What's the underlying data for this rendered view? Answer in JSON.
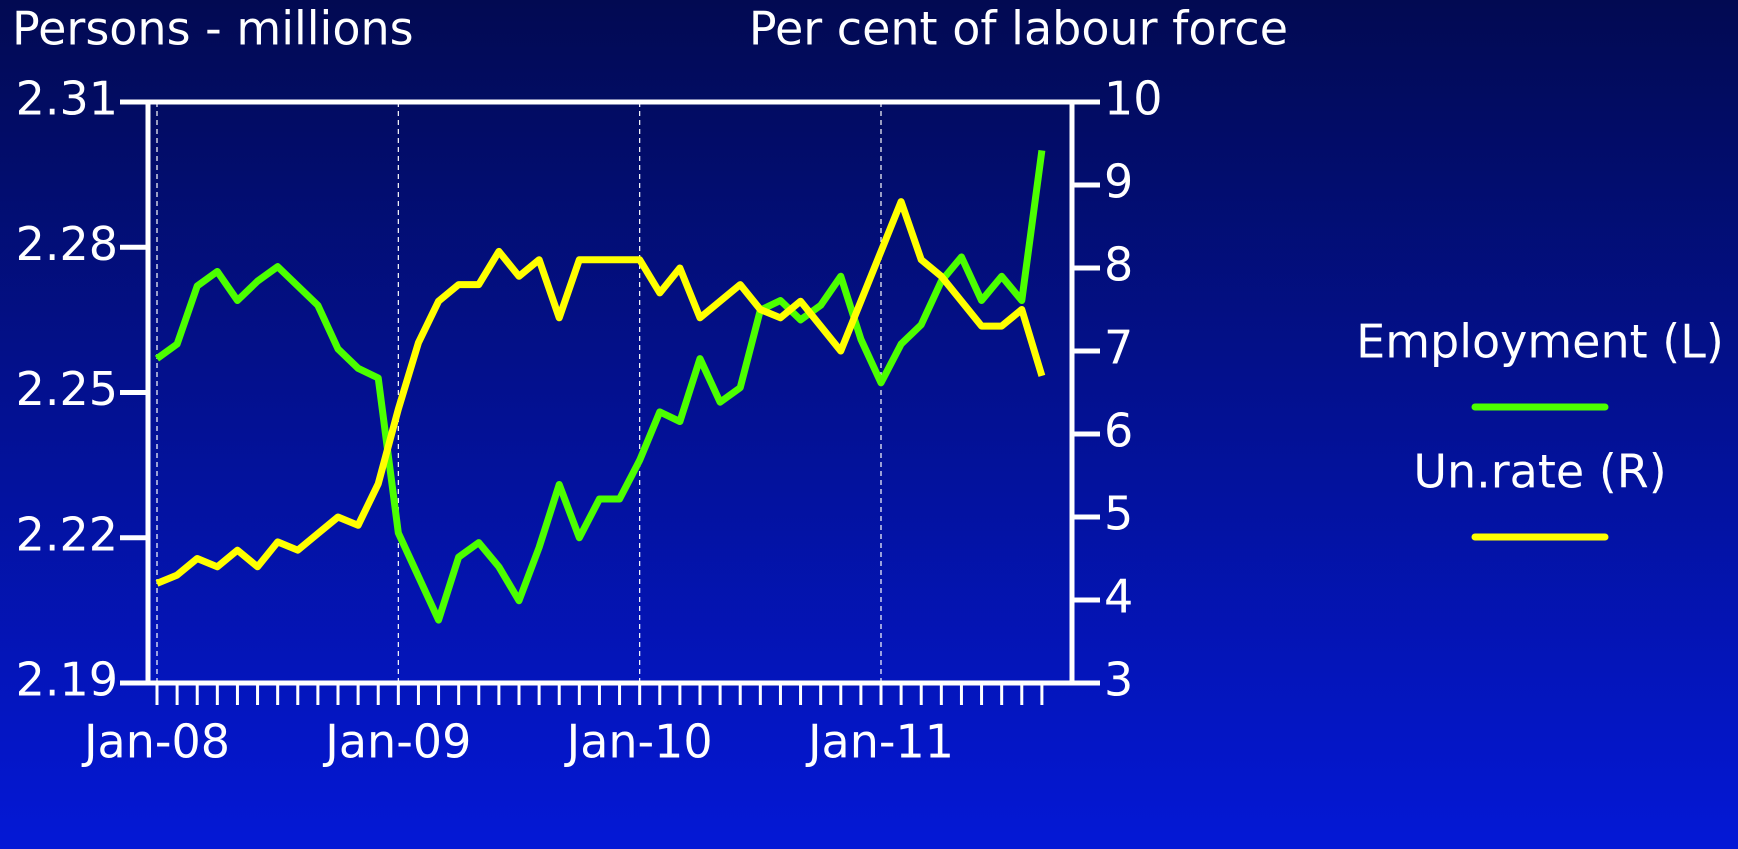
{
  "chart_data": {
    "type": "line",
    "y_label": "Persons - millions",
    "y2_label": "Per cent of labour force",
    "categories": [
      "Jan-08",
      null,
      null,
      null,
      null,
      null,
      null,
      null,
      null,
      null,
      null,
      null,
      "Jan-09",
      null,
      null,
      null,
      null,
      null,
      null,
      null,
      null,
      null,
      null,
      null,
      "Jan-10",
      null,
      null,
      null,
      null,
      null,
      null,
      null,
      null,
      null,
      null,
      null,
      "Jan-11",
      null,
      null,
      null,
      null,
      null,
      null,
      null,
      null
    ],
    "series": [
      {
        "name": "Employment (L)",
        "color": "#4cff00",
        "axis": "y",
        "values": [
          2.257,
          2.26,
          2.272,
          2.275,
          2.269,
          2.273,
          2.276,
          2.272,
          2.268,
          2.259,
          2.255,
          2.253,
          2.221,
          2.212,
          2.203,
          2.216,
          2.219,
          2.214,
          2.207,
          2.218,
          2.231,
          2.22,
          2.228,
          2.228,
          2.236,
          2.246,
          2.244,
          2.257,
          2.248,
          2.251,
          2.267,
          2.269,
          2.265,
          2.268,
          2.274,
          2.261,
          2.252,
          2.26,
          2.264,
          2.273,
          2.278,
          2.269,
          2.274,
          2.269,
          2.3
        ]
      },
      {
        "name": "Un.rate (R)",
        "color": "#ffff00",
        "axis": "y2",
        "values": [
          4.2,
          4.3,
          4.5,
          4.4,
          4.6,
          4.4,
          4.7,
          4.6,
          4.8,
          5.0,
          4.9,
          5.4,
          6.3,
          7.1,
          7.6,
          7.8,
          7.8,
          8.2,
          7.9,
          8.1,
          7.4,
          8.1,
          8.1,
          8.1,
          8.1,
          7.7,
          8.0,
          7.4,
          7.6,
          7.8,
          7.5,
          7.4,
          7.6,
          7.3,
          7.0,
          7.6,
          8.2,
          8.8,
          8.1,
          7.9,
          7.6,
          7.3,
          7.3,
          7.5,
          6.7
        ]
      }
    ],
    "ylim": [
      2.19,
      2.31
    ],
    "yticks": [
      2.19,
      2.22,
      2.25,
      2.28,
      2.31
    ],
    "y2lim": [
      3,
      10
    ],
    "y2ticks": [
      3,
      4,
      5,
      6,
      7,
      8,
      9,
      10
    ],
    "grid": true,
    "legend": "right"
  }
}
